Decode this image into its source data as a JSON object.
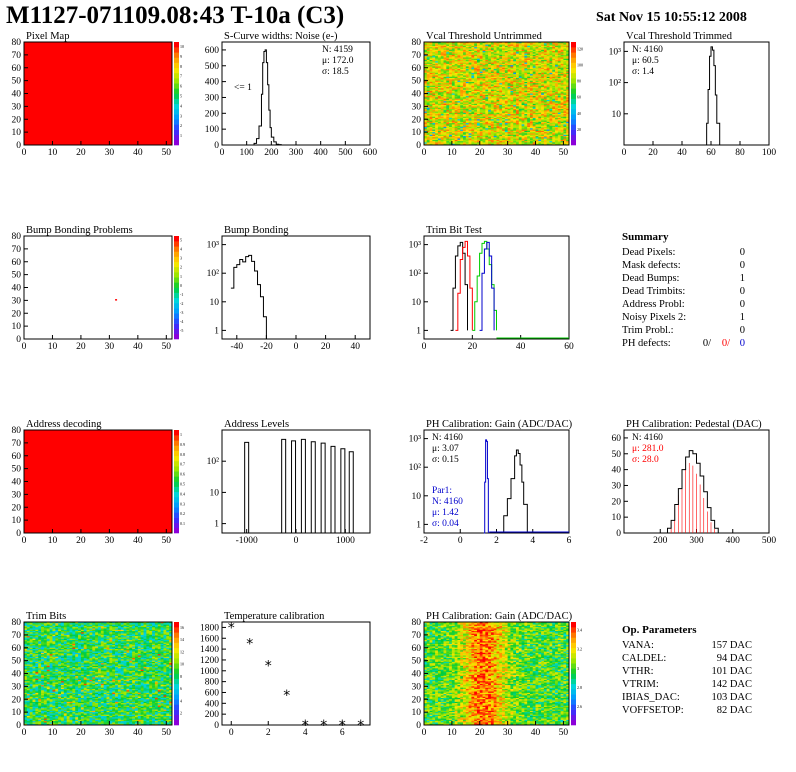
{
  "header": {
    "title": "M1127-071109.08:43 T-10a (C3)",
    "date": "Sat Nov 15 10:55:12 2008"
  },
  "colors": {
    "red": "#ff0000",
    "hist": "#000000",
    "blue": "#0000cc",
    "green": "#00cc00"
  },
  "summary": {
    "title": "Summary",
    "rows": [
      {
        "label": "Dead Pixels:",
        "value": "0"
      },
      {
        "label": "Mask defects:",
        "value": "0"
      },
      {
        "label": "Dead Bumps:",
        "value": "1"
      },
      {
        "label": "Dead Trimbits:",
        "value": "0"
      },
      {
        "label": "Address Probl:",
        "value": "0"
      },
      {
        "label": "Noisy Pixels 2:",
        "value": "1"
      },
      {
        "label": "Trim Probl.:",
        "value": "0"
      }
    ],
    "ph": {
      "label": "PH defects:",
      "v1": "0/",
      "v2": "0/",
      "v3": "0"
    }
  },
  "op_params": {
    "title": "Op. Parameters",
    "rows": [
      {
        "label": "VANA:",
        "value": "157 DAC"
      },
      {
        "label": "CALDEL:",
        "value": "94 DAC"
      },
      {
        "label": "VTHR:",
        "value": "101 DAC"
      },
      {
        "label": "VTRIM:",
        "value": "142 DAC"
      },
      {
        "label": "IBIAS_DAC:",
        "value": "103 DAC"
      },
      {
        "label": "VOFFSETOP:",
        "value": "82 DAC"
      }
    ]
  },
  "chart_data": [
    {
      "id": "pixel-map",
      "type": "heatmap",
      "title": "Pixel Map",
      "xlim": [
        0,
        52
      ],
      "ylim": [
        0,
        80
      ],
      "xticks": [
        0,
        10,
        20,
        30,
        40,
        50
      ],
      "yticks": [
        0,
        10,
        20,
        30,
        40,
        50,
        60,
        70,
        80
      ],
      "fill": "uniform-red",
      "zticks": [
        "1",
        "2",
        "3",
        "4",
        "5",
        "6",
        "7",
        "8",
        "9",
        "10"
      ],
      "palette": "rainbow"
    },
    {
      "id": "s-curve-noise",
      "type": "line",
      "title": "S-Curve widths: Noise (e-)",
      "xlim": [
        0,
        600
      ],
      "ylim": [
        0,
        650
      ],
      "xticks": [
        0,
        100,
        200,
        300,
        400,
        500,
        600
      ],
      "yticks": [
        0,
        100,
        200,
        300,
        400,
        500,
        600
      ],
      "stats": [
        "N: 4159",
        "μ: 172.0",
        "σ: 18.5"
      ],
      "annotation": "<= 1",
      "x": [
        120,
        130,
        140,
        150,
        160,
        165,
        170,
        175,
        180,
        185,
        190,
        195,
        200,
        210,
        220,
        230,
        240
      ],
      "y": [
        0,
        10,
        40,
        120,
        320,
        520,
        590,
        600,
        520,
        380,
        220,
        110,
        50,
        20,
        5,
        2,
        0
      ]
    },
    {
      "id": "vcal-untrimmed",
      "type": "heatmap",
      "title": "Vcal Threshold Untrimmed",
      "xlim": [
        0,
        52
      ],
      "ylim": [
        0,
        80
      ],
      "xticks": [
        0,
        10,
        20,
        30,
        40,
        50
      ],
      "yticks": [
        0,
        10,
        20,
        30,
        40,
        50,
        60,
        70,
        80
      ],
      "fill": "orange-noise",
      "zticks": [
        "20",
        "40",
        "60",
        "80",
        "100",
        "120"
      ],
      "palette": "rainbow"
    },
    {
      "id": "vcal-trimmed",
      "type": "line",
      "title": "Vcal Threshold Trimmed",
      "xlim": [
        0,
        100
      ],
      "ylog": true,
      "ylim": [
        1,
        2000
      ],
      "xticks": [
        0,
        20,
        40,
        60,
        80,
        100
      ],
      "yticks": [
        "10",
        "10²",
        "10³"
      ],
      "stats": [
        "N: 4160",
        "μ: 60.5",
        "σ: 1.4"
      ],
      "x": [
        55,
        57,
        58,
        59,
        60,
        61,
        62,
        63,
        64,
        66
      ],
      "y": [
        1,
        5,
        60,
        700,
        1400,
        1100,
        350,
        40,
        5,
        1
      ]
    },
    {
      "id": "bump-bonding-problems",
      "type": "heatmap",
      "title": "Bump Bonding Problems",
      "xlim": [
        0,
        52
      ],
      "ylim": [
        0,
        80
      ],
      "xticks": [
        0,
        10,
        20,
        30,
        40,
        50
      ],
      "yticks": [
        0,
        10,
        20,
        30,
        40,
        50,
        60,
        70,
        80
      ],
      "fill": "single-hit",
      "hit": {
        "x": 32,
        "y": 31
      },
      "zticks": [
        "-5",
        "-4",
        "-3",
        "-2",
        "-1",
        "0",
        "1",
        "2",
        "3",
        "4",
        "5"
      ],
      "palette": "rainbow"
    },
    {
      "id": "bump-bonding",
      "type": "line",
      "title": "Bump Bonding",
      "xlim": [
        -50,
        50
      ],
      "ylog": true,
      "ylim": [
        0.5,
        2000
      ],
      "xticks": [
        -40,
        -20,
        0,
        20,
        40
      ],
      "yticks": [
        "1",
        "10",
        "10²",
        "10³"
      ],
      "x": [
        -44,
        -42,
        -40,
        -38,
        -36,
        -34,
        -32,
        -30,
        -28,
        -26,
        -24,
        -22,
        -20
      ],
      "y": [
        30,
        160,
        200,
        300,
        250,
        380,
        420,
        260,
        120,
        40,
        15,
        3,
        0.5
      ]
    },
    {
      "id": "trim-bit-test",
      "type": "line",
      "title": "Trim Bit Test",
      "xlim": [
        0,
        60
      ],
      "ylog": true,
      "ylim": [
        0.5,
        2000
      ],
      "xticks": [
        0,
        20,
        40,
        60
      ],
      "yticks": [
        "1",
        "10",
        "10²",
        "10³"
      ],
      "series": [
        {
          "color": "black",
          "x": [
            11,
            12,
            13,
            14,
            15,
            16,
            17,
            18
          ],
          "y": [
            1,
            30,
            400,
            900,
            1200,
            500,
            40,
            1
          ]
        },
        {
          "color": "red",
          "x": [
            13,
            14,
            15,
            16,
            17,
            18,
            19,
            20
          ],
          "y": [
            1,
            20,
            300,
            800,
            1300,
            400,
            30,
            1
          ]
        },
        {
          "color": "green",
          "x": [
            20,
            21,
            22,
            23,
            24,
            25,
            26,
            27,
            28,
            29,
            30
          ],
          "y": [
            1,
            10,
            80,
            500,
            1100,
            1300,
            700,
            200,
            40,
            5,
            1
          ]
        },
        {
          "color": "blue",
          "x": [
            23,
            24,
            25,
            26,
            27,
            28,
            29
          ],
          "y": [
            1,
            100,
            700,
            1200,
            400,
            30,
            1
          ]
        }
      ]
    },
    {
      "id": "address-decoding",
      "type": "heatmap",
      "title": "Address decoding",
      "xlim": [
        0,
        52
      ],
      "ylim": [
        0,
        80
      ],
      "xticks": [
        0,
        10,
        20,
        30,
        40,
        50
      ],
      "yticks": [
        0,
        10,
        20,
        30,
        40,
        50,
        60,
        70,
        80
      ],
      "fill": "uniform-red",
      "zticks": [
        "0.1",
        "0.2",
        "0.3",
        "0.4",
        "0.5",
        "0.6",
        "0.7",
        "0.8",
        "0.9",
        "1"
      ],
      "palette": "rainbow"
    },
    {
      "id": "address-levels",
      "type": "line",
      "title": "Address Levels",
      "xlim": [
        -1500,
        1500
      ],
      "ylog": true,
      "ylim": [
        0.5,
        1000
      ],
      "xticks": [
        -1000,
        0,
        1000
      ],
      "yticks": [
        "1",
        "10",
        "10²"
      ],
      "peaks": [
        -1000,
        -250,
        -50,
        150,
        350,
        550,
        750,
        950,
        1120
      ],
      "peak_heights": [
        400,
        500,
        450,
        500,
        420,
        380,
        300,
        250,
        200
      ]
    },
    {
      "id": "ph-gain",
      "type": "line",
      "title": "PH Calibration: Gain (ADC/DAC)",
      "xlim": [
        -2,
        6
      ],
      "ylog": true,
      "ylim": [
        0.5,
        2000
      ],
      "xticks": [
        -2,
        0,
        2,
        4,
        6
      ],
      "yticks": [
        "1",
        "10",
        "10²",
        "10³"
      ],
      "stats": [
        "N: 4160",
        "μ: 3.07",
        "σ: 0.15"
      ],
      "stats2": [
        "Par1:",
        "N: 4160",
        "μ: 1.42",
        "σ: 0.04"
      ],
      "series": [
        {
          "color": "black",
          "x": [
            2.2,
            2.4,
            2.6,
            2.8,
            3.0,
            3.1,
            3.2,
            3.3,
            3.4,
            3.5,
            3.7
          ],
          "y": [
            0.5,
            2,
            8,
            40,
            250,
            400,
            300,
            120,
            30,
            5,
            0.5
          ]
        },
        {
          "color": "blue",
          "x": [
            1.3,
            1.35,
            1.4,
            1.45,
            1.5,
            1.55
          ],
          "y": [
            0.5,
            30,
            900,
            800,
            40,
            0.5
          ]
        }
      ]
    },
    {
      "id": "ph-pedestal",
      "type": "line",
      "title": "PH Calibration: Pedestal (DAC)",
      "xlim": [
        100,
        500
      ],
      "ylim": [
        0,
        65
      ],
      "xticks": [
        200,
        300,
        400,
        500
      ],
      "yticks": [
        0,
        10,
        20,
        30,
        40,
        50,
        60
      ],
      "stats": [
        "N: 4160",
        "μ: 281.0",
        "σ: 28.0"
      ],
      "x": [
        210,
        220,
        230,
        240,
        250,
        260,
        270,
        280,
        290,
        300,
        310,
        320,
        330,
        340,
        350,
        360
      ],
      "y": [
        0,
        3,
        8,
        18,
        28,
        40,
        48,
        52,
        50,
        44,
        36,
        26,
        16,
        8,
        3,
        0
      ]
    },
    {
      "id": "trim-bits",
      "type": "heatmap",
      "title": "Trim Bits",
      "xlim": [
        0,
        52
      ],
      "ylim": [
        0,
        80
      ],
      "xticks": [
        0,
        10,
        20,
        30,
        40,
        50
      ],
      "yticks": [
        0,
        10,
        20,
        30,
        40,
        50,
        60,
        70,
        80
      ],
      "fill": "green-noise",
      "zticks": [
        "2",
        "4",
        "6",
        "8",
        "10",
        "12",
        "14",
        "16"
      ],
      "palette": "rainbow"
    },
    {
      "id": "temperature-calibration",
      "type": "scatter",
      "title": "Temperature calibration",
      "xlim": [
        -0.5,
        7.5
      ],
      "ylim": [
        0,
        1900
      ],
      "xticks": [
        0,
        2,
        4,
        6
      ],
      "yticks": [
        0,
        200,
        400,
        600,
        800,
        1000,
        1200,
        1400,
        1600,
        1800
      ],
      "x": [
        0,
        1,
        2,
        3,
        4,
        5,
        6,
        7
      ],
      "y": [
        1800,
        1500,
        1100,
        550,
        0,
        0,
        0,
        0
      ]
    },
    {
      "id": "ph-gain-map",
      "type": "heatmap",
      "title": "PH Calibration: Gain (ADC/DAC)",
      "xlim": [
        0,
        52
      ],
      "ylim": [
        0,
        80
      ],
      "xticks": [
        0,
        10,
        20,
        30,
        40,
        50
      ],
      "yticks": [
        0,
        10,
        20,
        30,
        40,
        50,
        60,
        70,
        80
      ],
      "fill": "gain-noise",
      "zticks": [
        "2.6",
        "2.8",
        "3",
        "3.2",
        "3.4"
      ],
      "palette": "rainbow"
    }
  ]
}
